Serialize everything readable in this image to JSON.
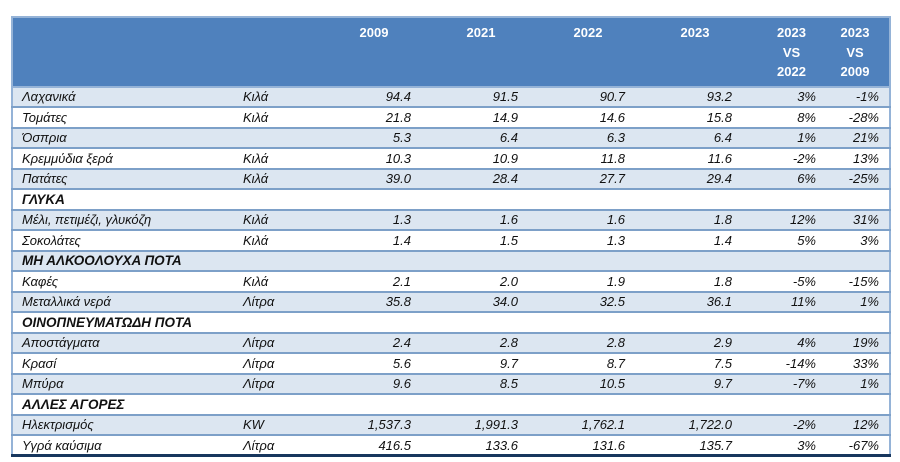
{
  "colors": {
    "header_bg": "#4F81BD",
    "header_text": "#FFFFFF",
    "row_shade": "#DCE6F1",
    "separator": "#7DA0C8",
    "outer_border": "#95B3D7",
    "bottom_border": "#17365D"
  },
  "table": {
    "header": [
      "",
      "",
      "2009",
      "2021",
      "2022",
      "2023",
      "2023\nVS\n2022",
      "2023\nVS\n2009"
    ],
    "rows": [
      {
        "type": "data",
        "shaded": true,
        "label": "Λαχανικά",
        "unit": "Κιλά",
        "values": [
          "94.4",
          "91.5",
          "90.7",
          "93.2",
          "3%",
          "-1%"
        ]
      },
      {
        "type": "data",
        "shaded": false,
        "label": "Τομάτες",
        "unit": "Κιλά",
        "values": [
          "21.8",
          "14.9",
          "14.6",
          "15.8",
          "8%",
          "-28%"
        ]
      },
      {
        "type": "data",
        "shaded": true,
        "label": "Όσπρια",
        "unit": "",
        "values": [
          "5.3",
          "6.4",
          "6.3",
          "6.4",
          "1%",
          "21%"
        ]
      },
      {
        "type": "data",
        "shaded": false,
        "label": "Κρεμμύδια ξερά",
        "unit": "Κιλά",
        "values": [
          "10.3",
          "10.9",
          "11.8",
          "11.6",
          "-2%",
          "13%"
        ]
      },
      {
        "type": "data",
        "shaded": true,
        "label": "Πατάτες",
        "unit": "Κιλά",
        "values": [
          "39.0",
          "28.4",
          "27.7",
          "29.4",
          "6%",
          "-25%"
        ]
      },
      {
        "type": "section",
        "shaded": false,
        "label": "ΓΛΥΚΑ"
      },
      {
        "type": "data",
        "shaded": true,
        "label": "Μέλι, πετιμέζι, γλυκόζη",
        "unit": "Κιλά",
        "values": [
          "1.3",
          "1.6",
          "1.6",
          "1.8",
          "12%",
          "31%"
        ]
      },
      {
        "type": "data",
        "shaded": false,
        "label": "Σοκολάτες",
        "unit": "Κιλά",
        "values": [
          "1.4",
          "1.5",
          "1.3",
          "1.4",
          "5%",
          "3%"
        ]
      },
      {
        "type": "section",
        "shaded": true,
        "label": "ΜΗ ΑΛΚΟΟΛΟΥΧΑ ΠΟΤΑ"
      },
      {
        "type": "data",
        "shaded": false,
        "label": "Καφές",
        "unit": "Κιλά",
        "values": [
          "2.1",
          "2.0",
          "1.9",
          "1.8",
          "-5%",
          "-15%"
        ]
      },
      {
        "type": "data",
        "shaded": true,
        "label": "Μεταλλικά νερά",
        "unit": "Λίτρα",
        "values": [
          "35.8",
          "34.0",
          "32.5",
          "36.1",
          "11%",
          "1%"
        ]
      },
      {
        "type": "section",
        "shaded": false,
        "label": "ΟΙΝΟΠΝΕΥΜΑΤΩΔΗ ΠΟΤΑ"
      },
      {
        "type": "data",
        "shaded": true,
        "label": "Αποστάγματα",
        "unit": "Λίτρα",
        "values": [
          "2.4",
          "2.8",
          "2.8",
          "2.9",
          "4%",
          "19%"
        ]
      },
      {
        "type": "data",
        "shaded": false,
        "label": "Κρασί",
        "unit": "Λίτρα",
        "values": [
          "5.6",
          "9.7",
          "8.7",
          "7.5",
          "-14%",
          "33%"
        ]
      },
      {
        "type": "data",
        "shaded": true,
        "label": "Μπύρα",
        "unit": "Λίτρα",
        "values": [
          "9.6",
          "8.5",
          "10.5",
          "9.7",
          "-7%",
          "1%"
        ]
      },
      {
        "type": "section",
        "shaded": false,
        "label": "ΑΛΛΕΣ ΑΓΟΡΕΣ"
      },
      {
        "type": "data",
        "shaded": true,
        "label": "Ηλεκτρισμός",
        "unit": "KW",
        "values": [
          "1,537.3",
          "1,991.3",
          "1,762.1",
          "1,722.0",
          "-2%",
          "12%"
        ]
      },
      {
        "type": "data",
        "shaded": false,
        "label": "Υγρά καύσιμα",
        "unit": "Λίτρα",
        "values": [
          "416.5",
          "133.6",
          "131.6",
          "135.7",
          "3%",
          "-67%"
        ]
      }
    ]
  }
}
